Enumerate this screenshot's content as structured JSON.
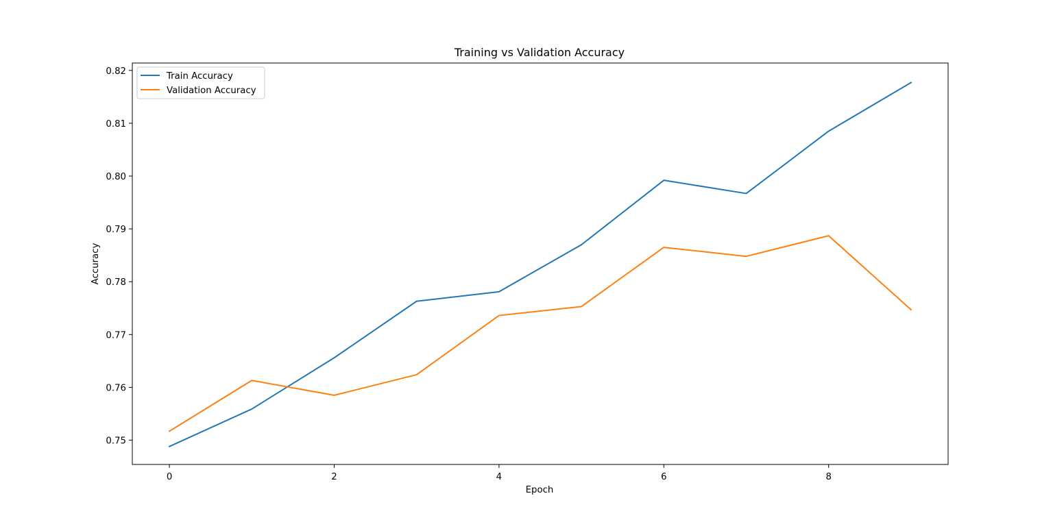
{
  "chart_data": {
    "type": "line",
    "title": "Training vs Validation Accuracy",
    "xlabel": "Epoch",
    "ylabel": "Accuracy",
    "x": [
      0,
      1,
      2,
      3,
      4,
      5,
      6,
      7,
      8,
      9
    ],
    "xlim": [
      -0.45,
      9.45
    ],
    "ylim": [
      0.7454,
      0.8214
    ],
    "xticks": [
      0,
      2,
      4,
      6,
      8
    ],
    "yticks": [
      0.75,
      0.76,
      0.77,
      0.78,
      0.79,
      0.8,
      0.81,
      0.82
    ],
    "xtick_labels": [
      "0",
      "2",
      "4",
      "6",
      "8"
    ],
    "ytick_labels": [
      "0.75",
      "0.76",
      "0.77",
      "0.78",
      "0.79",
      "0.80",
      "0.81",
      "0.82"
    ],
    "grid": false,
    "legend_position": "upper left",
    "series": [
      {
        "name": "Train Accuracy",
        "color": "#1f77b4",
        "values": [
          0.7488,
          0.7559,
          0.7656,
          0.7763,
          0.7781,
          0.787,
          0.7992,
          0.7967,
          0.8085,
          0.8177
        ]
      },
      {
        "name": "Validation Accuracy",
        "color": "#ff7f0e",
        "values": [
          0.7517,
          0.7613,
          0.7585,
          0.7624,
          0.7736,
          0.7753,
          0.7865,
          0.7848,
          0.7887,
          0.7747
        ]
      }
    ]
  }
}
